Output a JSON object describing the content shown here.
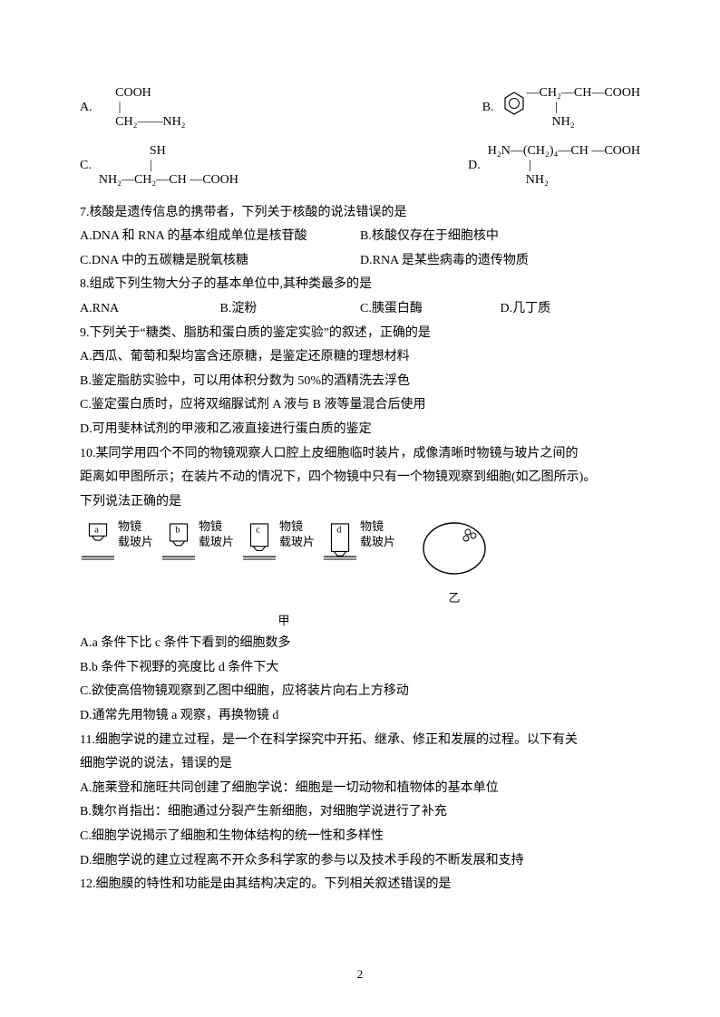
{
  "chem": {
    "A_label": "A.",
    "A_struct": "     COOH\n      |\n     CH₂——NH₂",
    "B_label": "B.",
    "B_struct_right": "—CH₂—CH—COOH\n         |\n        NH₂",
    "C_label": "C.",
    "C_struct": "                SH\n                |\nNH₂—CH₂—CH —COOH",
    "D_label": "D.",
    "D_struct": "H₂N—(CH₂)₄—CH —COOH\n             |\n            NH₂"
  },
  "q7": {
    "stem": "7.核酸是遗传信息的携带者，下列关于核酸的说法错误的是",
    "A": "A.DNA 和 RNA 的基本组成单位是核苷酸",
    "B": "B.核酸仅存在于细胞核中",
    "C": "C.DNA 中的五碳糖是脱氧核糖",
    "D": "D.RNA 是某些病毒的遗传物质"
  },
  "q8": {
    "stem": "8.组成下列生物大分子的基本单位中,其种类最多的是",
    "A": "A.RNA",
    "B": "B.淀粉",
    "C": "C.胰蛋白酶",
    "D": "D.几丁质"
  },
  "q9": {
    "stem": "9.下列关于“糖类、脂肪和蛋白质的鉴定实验”的叙述，正确的是",
    "A": "A.西瓜、葡萄和梨均富含还原糖，是鉴定还原糖的理想材料",
    "B": "B.鉴定脂肪实验中，可以用体积分数为 50%的酒精洗去浮色",
    "C": "C.鉴定蛋白质时，应将双缩脲试剂 A 液与 B 液等量混合后使用",
    "D": "D.可用斐林试剂的甲液和乙液直接进行蛋白质的鉴定"
  },
  "q10": {
    "stem1": "10.某同学用四个不同的物镜观察人口腔上皮细胞临时装片，成像清晰时物镜与玻片之间的",
    "stem2": "距离如甲图所示；在装片不动的情况下，四个物镜中只有一个物镜观察到细胞(如乙图所示)。",
    "stem3": "下列说法正确的是",
    "A": "A.a 条件下比 c 条件下看到的细胞数多",
    "B": "B.b 条件下视野的亮度比 d 条件下大",
    "C": "C.欲使高倍物镜观察到乙图中细胞，应将装片向右上方移动",
    "D": "D.通常先用物镜 a 观察，再换物镜 d",
    "diagram": {
      "lens_letters": [
        "a",
        "b",
        "c",
        "d"
      ],
      "lens_heights": [
        14,
        20,
        26,
        32
      ],
      "label1": "物镜",
      "label2": "载玻片",
      "jia": "甲",
      "yi": "乙",
      "line_color": "#000000"
    }
  },
  "q11": {
    "stem1": "11.细胞学说的建立过程，是一个在科学探究中开拓、继承、修正和发展的过程。以下有关",
    "stem2": "细胞学说的说法，错误的是",
    "A": "A.施莱登和施旺共同创建了细胞学说：细胞是一切动物和植物体的基本单位",
    "B": "B.魏尔肖指出：细胞通过分裂产生新细胞，对细胞学说进行了补充",
    "C": "C.细胞学说揭示了细胞和生物体结构的统一性和多样性",
    "D": "D.细胞学说的建立过程离不开众多科学家的参与以及技术手段的不断发展和支持"
  },
  "q12": {
    "stem": "12.细胞膜的特性和功能是由其结构决定的。下列相关叙述错误的是"
  },
  "page_number": "2"
}
